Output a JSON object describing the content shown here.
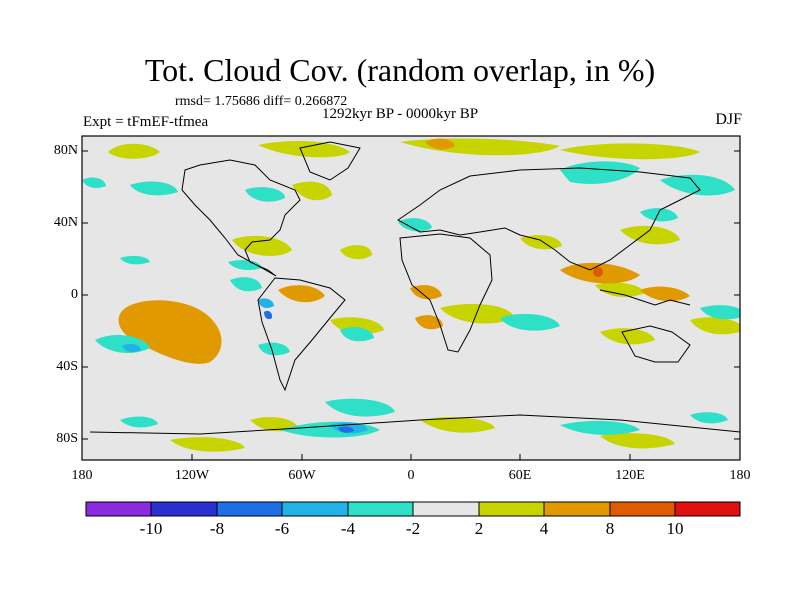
{
  "header": {
    "title": "Tot. Cloud Cov. (random overlap, in %)",
    "stats": "rmsd= 1.75686 diff= 0.266872",
    "period": "1292kyr BP - 0000kyr BP",
    "experiment": "Expt = tFmEF-tfmea",
    "season": "DJF"
  },
  "axes": {
    "lat_labels": [
      "80N",
      "40N",
      "0",
      "40S",
      "80S"
    ],
    "lon_labels": [
      "180",
      "120W",
      "60W",
      "0",
      "60E",
      "120E",
      "180"
    ]
  },
  "colorbar": {
    "labels": [
      "-10",
      "-8",
      "-6",
      "-4",
      "-2",
      "2",
      "4",
      "8",
      "10"
    ],
    "colors": [
      "#8a2be2",
      "#2a2fd0",
      "#1e6fe6",
      "#22b3e6",
      "#2ee0c8",
      "#e6e6e6",
      "#c8d400",
      "#e09a00",
      "#e05a00",
      "#e01010"
    ]
  }
}
